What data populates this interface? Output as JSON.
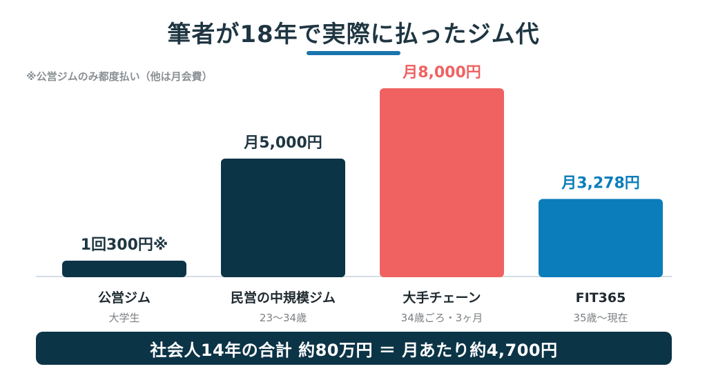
{
  "title": "筆者が18年で実際に払ったジム代",
  "note": "※公営ジムのみ都度払い（他は月会費）",
  "summary": "社会人14年の合計 約80万円 ＝ 月あたり約4,700円",
  "colors": {
    "navy": "#0c3447",
    "red": "#f06262",
    "blue": "#0b7dba",
    "title": "#1f3642",
    "underline": "#1a75ad",
    "baseline": "#d5dde2"
  },
  "chart_data": {
    "type": "bar",
    "title": "筆者が18年で実際に払ったジム代",
    "categories": [
      "公営ジム",
      "民営の中規模ジム",
      "大手チェーン",
      "FIT365"
    ],
    "subcategories": [
      "大学生",
      "23〜34歳",
      "34歳ごろ・3ヶ月",
      "35歳〜現在"
    ],
    "values": [
      300,
      5000,
      8000,
      3278
    ],
    "value_labels": [
      "1回300円※",
      "月5,000円",
      "月8,000円",
      "月3,278円"
    ],
    "bar_colors": [
      "#0c3447",
      "#0c3447",
      "#f06262",
      "#0b7dba"
    ],
    "label_colors": [
      "#1f3642",
      "#1f3642",
      "#f06262",
      "#0b7dba"
    ],
    "ylim": [
      0,
      8000
    ],
    "xlabel": "",
    "ylabel": "",
    "grid": false,
    "legend": "none"
  }
}
